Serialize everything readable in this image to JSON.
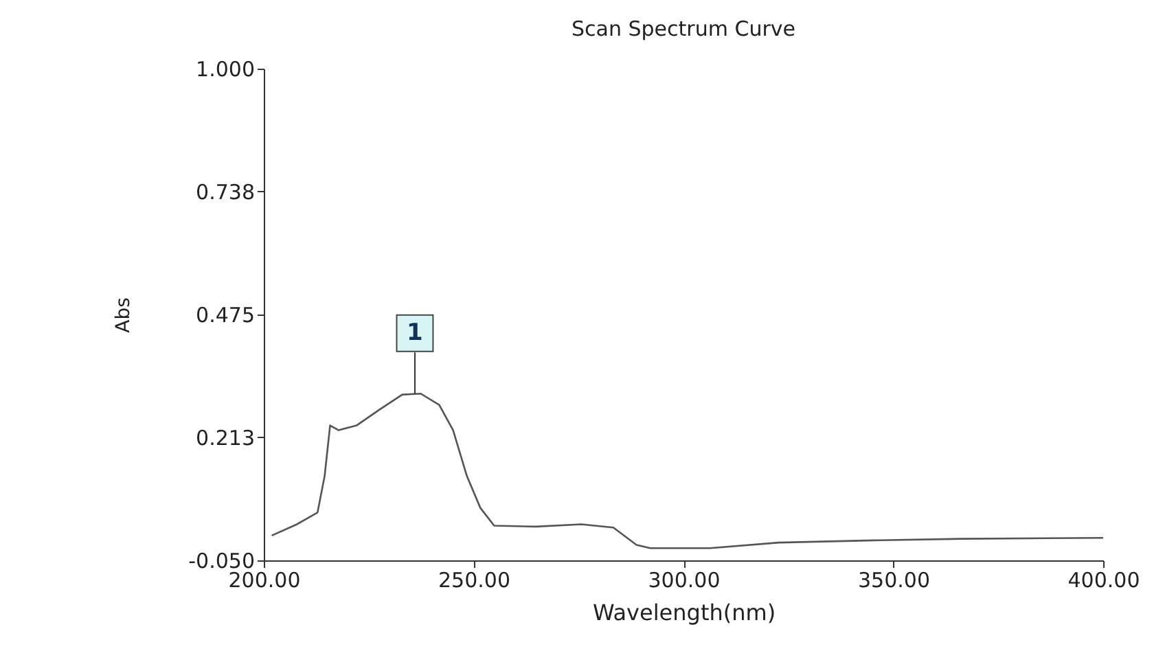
{
  "chart_data": {
    "type": "line",
    "title": "Scan Spectrum Curve",
    "xlabel": "Wavelength(nm)",
    "ylabel": "Abs",
    "x": [
      201.9,
      207.9,
      212.8,
      214.5,
      215.8,
      217.8,
      222.1,
      227.6,
      233.0,
      237.4,
      241.8,
      245.1,
      248.4,
      251.6,
      254.9,
      264.8,
      275.7,
      283.3,
      288.8,
      292.1,
      306.3,
      322.7,
      346.7,
      366.4,
      400.0
    ],
    "series": [
      {
        "color": "#555555",
        "values": [
          0.003,
          0.027,
          0.052,
          0.13,
          0.238,
          0.228,
          0.238,
          0.272,
          0.304,
          0.306,
          0.282,
          0.228,
          0.13,
          0.062,
          0.024,
          0.022,
          0.027,
          0.02,
          -0.017,
          -0.024,
          -0.024,
          -0.012,
          -0.007,
          -0.004,
          -0.002
        ]
      }
    ],
    "xlim": [
      200,
      400
    ],
    "ylim": [
      -0.05,
      1.0
    ],
    "xticks": [
      {
        "value": 200,
        "label": "200.00"
      },
      {
        "value": 250,
        "label": "250.00"
      },
      {
        "value": 300,
        "label": "300.00"
      },
      {
        "value": 350,
        "label": "350.00"
      },
      {
        "value": 400,
        "label": "400.00"
      }
    ],
    "yticks": [
      {
        "value": -0.05,
        "label": "-0.050"
      },
      {
        "value": 0.213,
        "label": "0.213"
      },
      {
        "value": 0.475,
        "label": "0.475"
      },
      {
        "value": 0.738,
        "label": "0.738"
      },
      {
        "value": 1.0,
        "label": "1.000"
      }
    ],
    "annotations": [
      {
        "text": "1",
        "x": 236,
        "y": 0.306
      }
    ],
    "grid": false,
    "marker": "none",
    "line_style": "solid"
  }
}
